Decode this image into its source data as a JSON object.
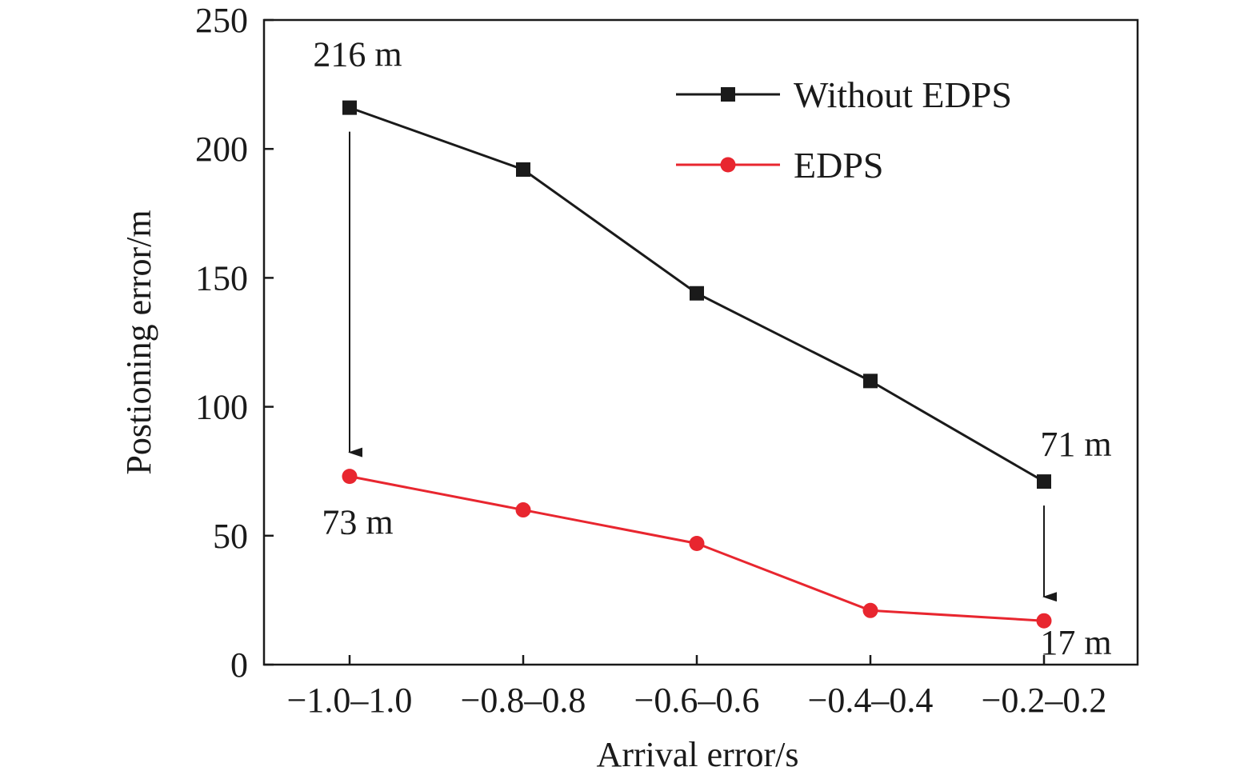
{
  "chart_data": {
    "type": "line",
    "xlabel": "Arrival error/s",
    "ylabel": "Postioning error/m",
    "x_tick_labels": [
      "−1.0–1.0",
      "−0.8–0.8",
      "−0.6–0.6",
      "−0.4–0.4",
      "−0.2–0.2"
    ],
    "y_ticks": [
      0,
      50,
      100,
      150,
      200,
      250
    ],
    "ylim": [
      0,
      250
    ],
    "grid": false,
    "legend_position": "top-right",
    "series": [
      {
        "name": "Without EDPS",
        "color": "#1a1a1a",
        "marker": "square",
        "values": [
          216,
          192,
          144,
          110,
          71
        ]
      },
      {
        "name": "EDPS",
        "color": "#e8262f",
        "marker": "circle",
        "values": [
          73,
          60,
          47,
          21,
          17
        ]
      }
    ],
    "annotations": [
      {
        "text": "216 m",
        "series": 0,
        "index": 0,
        "placement": "above"
      },
      {
        "text": "73 m",
        "series": 1,
        "index": 0,
        "placement": "below"
      },
      {
        "text": "71 m",
        "series": 0,
        "index": 4,
        "placement": "above"
      },
      {
        "text": "17 m",
        "series": 1,
        "index": 4,
        "placement": "below"
      }
    ],
    "arrows": [
      {
        "from_series": 0,
        "to_series": 1,
        "index": 0
      },
      {
        "from_series": 0,
        "to_series": 1,
        "index": 4
      }
    ]
  }
}
